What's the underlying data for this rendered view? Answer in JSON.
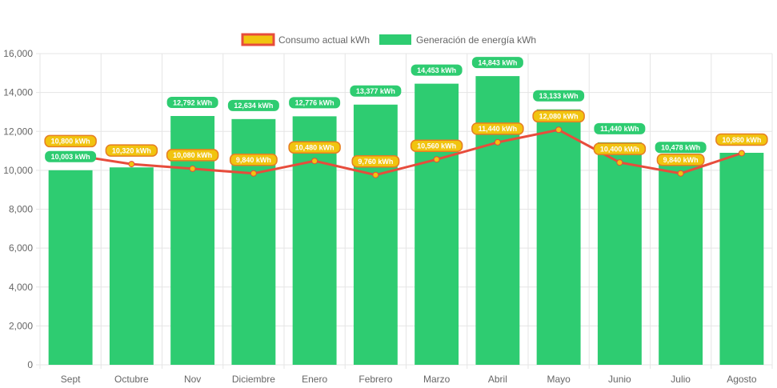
{
  "colors": {
    "generation": "#2ecc71",
    "consumption_line": "#e74c3c",
    "consumption_fill": "#f1c40f",
    "grid": "#e5e5e5",
    "axis_text": "#666666"
  },
  "legend": {
    "consumption_label": "Consumo actual kWh",
    "generation_label": "Generación de energía kWh"
  },
  "chart_data": {
    "type": "bar",
    "title": "",
    "xlabel": "",
    "ylabel": "",
    "ylim": [
      0,
      16000
    ],
    "y_ticks": [
      "0",
      "2,000",
      "4,000",
      "6,000",
      "8,000",
      "10,000",
      "12,000",
      "14,000",
      "16,000"
    ],
    "categories": [
      "Sept",
      "Octubre",
      "Nov",
      "Diciembre",
      "Enero",
      "Febrero",
      "Marzo",
      "Abril",
      "Mayo",
      "Junio",
      "Julio",
      "Agosto"
    ],
    "series": [
      {
        "name": "Generación de energía kWh",
        "kind": "bar",
        "values": [
          10003,
          10150,
          12792,
          12634,
          12776,
          13377,
          14453,
          14843,
          13133,
          11440,
          10478,
          10900
        ],
        "labels": [
          "10,003 kWh",
          "",
          "12,792 kWh",
          "12,634 kWh",
          "12,776 kWh",
          "13,377 kWh",
          "14,453 kWh",
          "14,843 kWh",
          "13,133 kWh",
          "11,440 kWh",
          "10,478 kWh",
          ""
        ]
      },
      {
        "name": "Consumo actual kWh",
        "kind": "line",
        "values": [
          10800,
          10320,
          10080,
          9840,
          10480,
          9760,
          10560,
          11440,
          12080,
          10400,
          9840,
          10880
        ],
        "labels": [
          "10,800 kWh",
          "10,320 kWh",
          "10,080 kWh",
          "9,840 kWh",
          "10,480 kWh",
          "9,760 kWh",
          "10,560 kWh",
          "11,440 kWh",
          "12,080 kWh",
          "10,400 kWh",
          "9,840 kWh",
          "10,880 kWh"
        ]
      }
    ],
    "grid": true,
    "legend_position": "top-center"
  }
}
